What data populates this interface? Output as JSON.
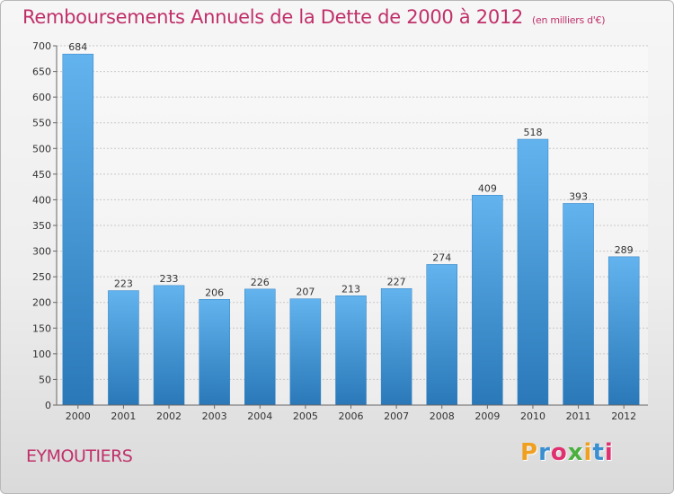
{
  "header": {
    "title": "Remboursements Annuels de la Dette de 2000 à 2012",
    "subtitle": "(en milliers d'€)"
  },
  "footer": {
    "commune": "EYMOUTIERS",
    "logo": "Proxiti",
    "logo_colors": [
      "#f0a020",
      "#3a8fd0",
      "#e03070",
      "#4bb040",
      "#f0a020",
      "#3a8fd0",
      "#e03070"
    ]
  },
  "colors": {
    "title": "#c0306a",
    "bar_light": "#62b3ee",
    "bar_dark": "#2a78b8"
  },
  "chart_data": {
    "type": "bar",
    "title": "Remboursements Annuels de la Dette de 2000 à 2012",
    "subtitle": "(en milliers d'€)",
    "categories": [
      "2000",
      "2001",
      "2002",
      "2003",
      "2004",
      "2005",
      "2006",
      "2007",
      "2008",
      "2009",
      "2010",
      "2011",
      "2012"
    ],
    "values": [
      684,
      223,
      233,
      206,
      226,
      207,
      213,
      227,
      274,
      409,
      518,
      393,
      289
    ],
    "ylim": [
      0,
      700
    ],
    "yticks": [
      0,
      50,
      100,
      150,
      200,
      250,
      300,
      350,
      400,
      450,
      500,
      550,
      600,
      650,
      700
    ],
    "grid": true,
    "data_labels": true
  }
}
